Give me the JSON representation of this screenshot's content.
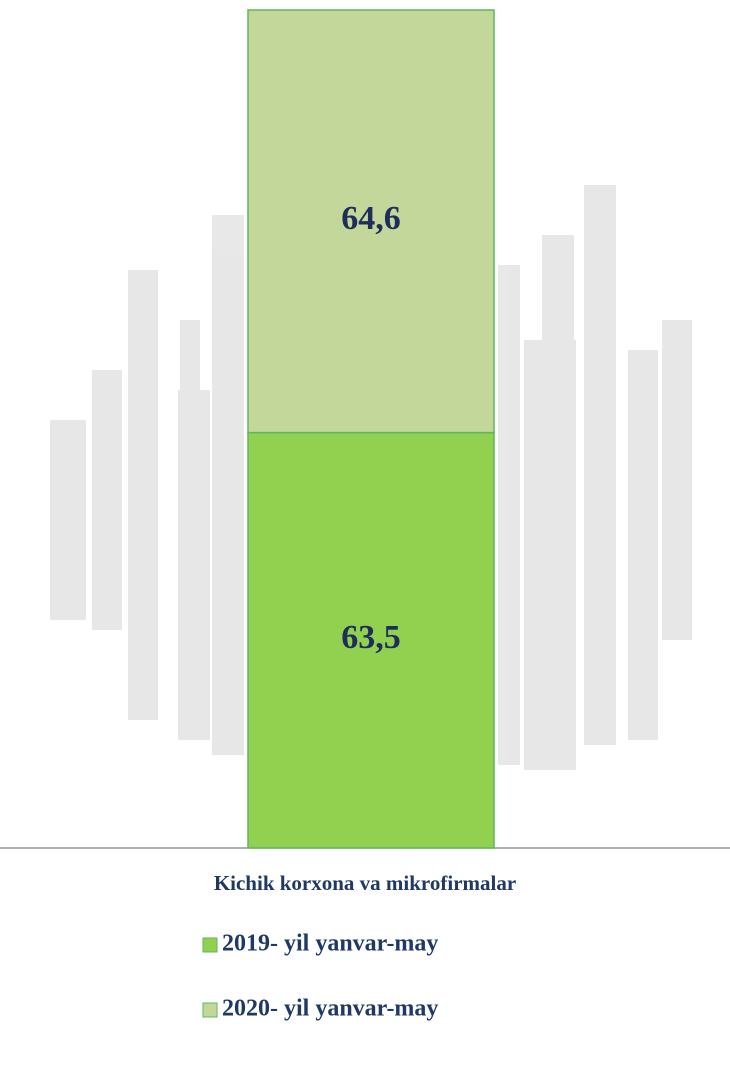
{
  "chart_data": {
    "type": "bar",
    "stacked": true,
    "categories": [
      "Kichik korxona va mikrofirmalar"
    ],
    "series": [
      {
        "name": "2019- yil yanvar-may",
        "color": "#92d050",
        "values": [
          63.5
        ],
        "value_labels": [
          "63,5"
        ]
      },
      {
        "name": "2020- yil yanvar-may",
        "color": "#c4d79b",
        "values": [
          64.6
        ],
        "value_labels": [
          "64,6"
        ]
      }
    ],
    "ylim": [
      0,
      128.1
    ],
    "grid": false,
    "legend": "bottom"
  }
}
